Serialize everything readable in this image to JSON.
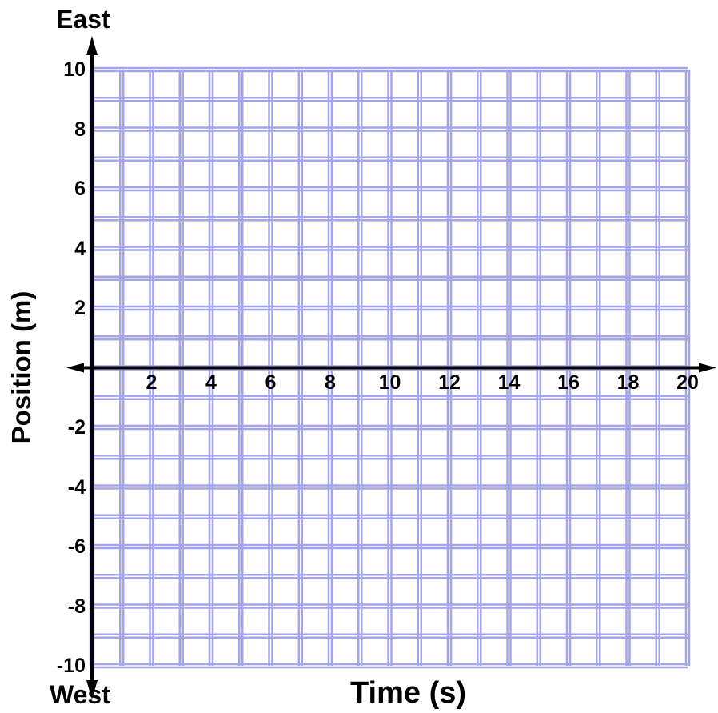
{
  "chart_data": {
    "type": "line",
    "title": "",
    "xlabel": "Time (s)",
    "ylabel": "Position (m)",
    "y_top_label": "East",
    "y_bottom_label": "West",
    "xlim": [
      0,
      20
    ],
    "ylim": [
      -10,
      10
    ],
    "x_ticks": [
      {
        "value": 2,
        "label": "2"
      },
      {
        "value": 4,
        "label": "4"
      },
      {
        "value": 6,
        "label": "6"
      },
      {
        "value": 8,
        "label": "8"
      },
      {
        "value": 10,
        "label": "10"
      },
      {
        "value": 12,
        "label": "12"
      },
      {
        "value": 14,
        "label": "14"
      },
      {
        "value": 16,
        "label": "16"
      },
      {
        "value": 18,
        "label": "18"
      },
      {
        "value": 20,
        "label": "20"
      }
    ],
    "y_ticks": [
      {
        "value": 10,
        "label": "10"
      },
      {
        "value": 8,
        "label": "8"
      },
      {
        "value": 6,
        "label": "6"
      },
      {
        "value": 4,
        "label": "4"
      },
      {
        "value": 2,
        "label": "2"
      },
      {
        "value": -2,
        "label": "-2"
      },
      {
        "value": -4,
        "label": "-4"
      },
      {
        "value": -6,
        "label": "-6"
      },
      {
        "value": -8,
        "label": "-8"
      },
      {
        "value": -10,
        "label": "-10"
      }
    ],
    "grid": true,
    "grid_step": 1,
    "grid_color": "#a3a3ee",
    "axis_color": "#000000",
    "series": []
  }
}
